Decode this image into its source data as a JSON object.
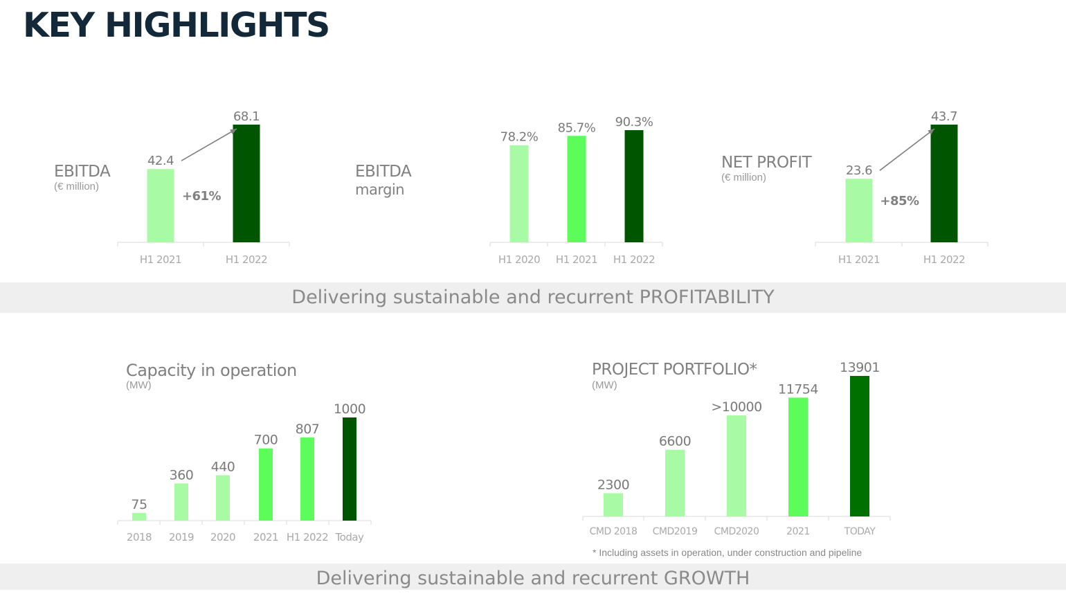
{
  "page_title": "KEY HIGHLIGHTS",
  "bands": {
    "profitability": "Delivering sustainable and recurrent PROFITABILITY",
    "growth": "Delivering sustainable and recurrent GROWTH"
  },
  "colors": {
    "light_green": "#a8fba4",
    "mid_green": "#5cfd5a",
    "dark_green": "#005500",
    "deep_green": "#007000",
    "title_navy": "#13293a",
    "text_grey": "#7a7a7a",
    "band_grey": "#efefef"
  },
  "chart_data": [
    {
      "type": "bar",
      "title": "EBITDA",
      "subtitle": "(€ million)",
      "categories": [
        "H1 2021",
        "H1 2022"
      ],
      "values": [
        42.4,
        68.1
      ],
      "labels": [
        "42.4",
        "68.1"
      ],
      "bar_colors": [
        "#a8fba4",
        "#005500"
      ],
      "growth_annotation": "+61%"
    },
    {
      "type": "bar",
      "title": "EBITDA",
      "subtitle": "margin",
      "categories": [
        "H1 2020",
        "H1 2021",
        "H1 2022"
      ],
      "values": [
        78.2,
        85.7,
        90.3
      ],
      "labels": [
        "78.2%",
        "85.7%",
        "90.3%"
      ],
      "bar_colors": [
        "#a8fba4",
        "#5cfd5a",
        "#005500"
      ]
    },
    {
      "type": "bar",
      "title": "NET PROFIT",
      "subtitle": "(€ million)",
      "categories": [
        "H1 2021",
        "H1 2022"
      ],
      "values": [
        23.6,
        43.7
      ],
      "labels": [
        "23.6",
        "43.7"
      ],
      "bar_colors": [
        "#a8fba4",
        "#005500"
      ],
      "growth_annotation": "+85%"
    },
    {
      "type": "bar",
      "title": "Capacity in operation",
      "subtitle": "(MW)",
      "categories": [
        "2018",
        "2019",
        "2020",
        "2021",
        "H1 2022",
        "Today"
      ],
      "values": [
        75,
        360,
        440,
        700,
        807,
        1000
      ],
      "labels": [
        "75",
        "360",
        "440",
        "700",
        "807",
        "1000"
      ],
      "bar_colors": [
        "#a8fba4",
        "#a8fba4",
        "#a8fba4",
        "#5cfd5a",
        "#5cfd5a",
        "#005500"
      ]
    },
    {
      "type": "bar",
      "title": "PROJECT PORTFOLIO*",
      "subtitle": "(MW)",
      "categories": [
        "CMD 2018",
        "CMD2019",
        "CMD2020",
        "2021",
        "TODAY"
      ],
      "values": [
        2300,
        6600,
        10000,
        11754,
        13901
      ],
      "labels": [
        "2300",
        "6600",
        ">10000",
        "11754",
        "13901"
      ],
      "bar_colors": [
        "#a8fba4",
        "#a8fba4",
        "#a8fba4",
        "#5cfd5a",
        "#007000"
      ],
      "footnote": "* Including assets in operation,  under construction and pipeline"
    }
  ]
}
